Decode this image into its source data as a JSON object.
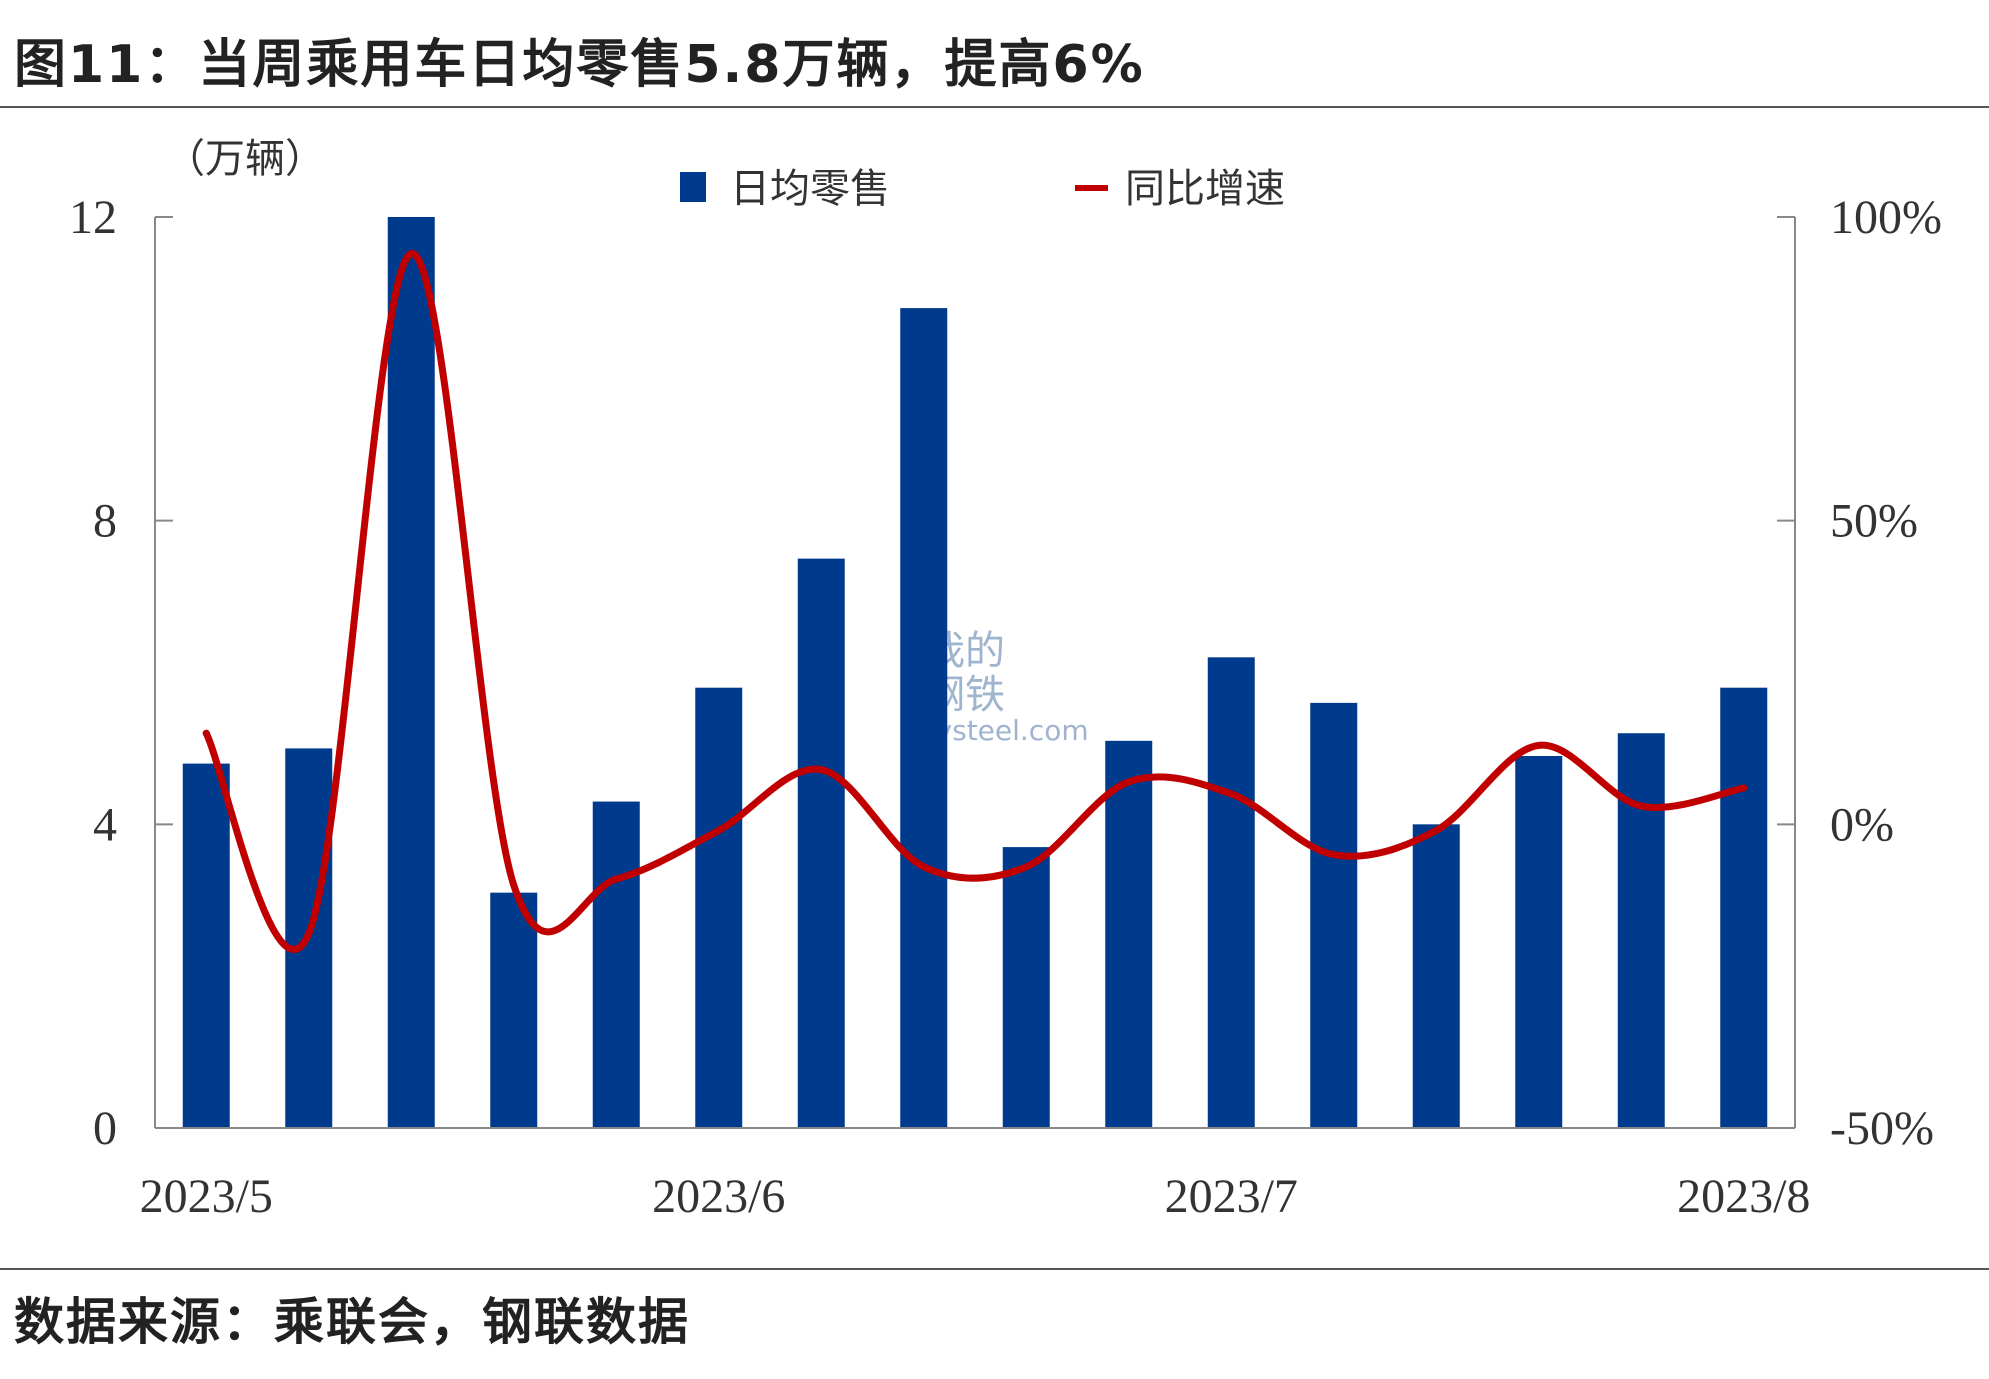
{
  "title": "图11：当周乘用车日均零售5.8万辆，提高6%",
  "source": "数据来源：乘联会，钢联数据",
  "watermark": {
    "line1": "我的",
    "line2": "钢铁",
    "domain": "Mysteel.com"
  },
  "colors": {
    "bar": "#003a8c",
    "line": "#c00000",
    "axis": "#888888"
  },
  "chart_data": {
    "type": "bar+line",
    "left_axis": {
      "unit_label": "（万辆）",
      "ylim": [
        0,
        12
      ],
      "ticks": [
        0,
        4,
        8,
        12
      ]
    },
    "right_axis": {
      "ylim": [
        -50,
        100
      ],
      "ticks": [
        -50,
        0,
        50,
        100
      ],
      "tick_labels": [
        "-50%",
        "0%",
        "50%",
        "100%"
      ]
    },
    "x_labels": [
      {
        "index": 0,
        "label": "2023/5"
      },
      {
        "index": 5,
        "label": "2023/6"
      },
      {
        "index": 10,
        "label": "2023/7"
      },
      {
        "index": 15,
        "label": "2023/8"
      }
    ],
    "legend": [
      "日均零售",
      "同比增速"
    ],
    "series": [
      {
        "name": "日均零售",
        "type": "bar",
        "axis": "left",
        "values": [
          4.8,
          5.0,
          12.0,
          3.1,
          4.3,
          5.8,
          7.5,
          10.8,
          3.7,
          5.1,
          6.2,
          5.6,
          4.0,
          4.9,
          5.2,
          5.8
        ]
      },
      {
        "name": "同比增速",
        "type": "line",
        "axis": "right",
        "values": [
          15,
          -18,
          94,
          -10,
          -9,
          -1,
          9,
          -7,
          -7,
          7,
          5,
          -5,
          -1,
          13,
          3,
          6
        ]
      }
    ],
    "legend_position": "top-center",
    "grid": false
  }
}
